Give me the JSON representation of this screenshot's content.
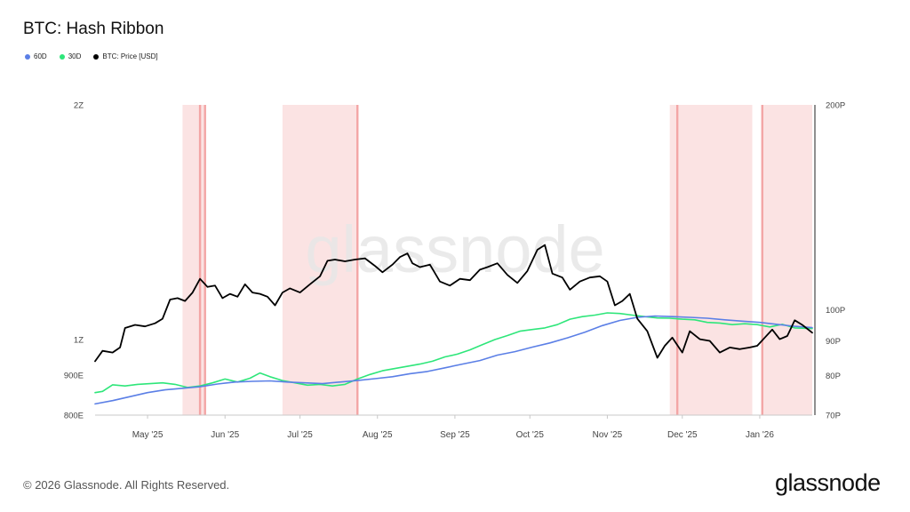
{
  "title": "BTC: Hash Ribbon",
  "footer": "© 2026 Glassnode. All Rights Reserved.",
  "brand": "glassnode",
  "watermark": "glassnode",
  "colors": {
    "60d": "#5b7fe6",
    "30d": "#2ee67a",
    "price": "#000000",
    "band": "#fbe3e3",
    "bandLine": "#f3a5a5"
  },
  "chart_data": {
    "type": "line",
    "title": "BTC: Hash Ribbon",
    "legend": [
      {
        "name": "60D",
        "color": "#5b7fe6"
      },
      {
        "name": "30D",
        "color": "#2ee67a"
      },
      {
        "name": "BTC: Price [USD]",
        "color": "#000000"
      }
    ],
    "legend_position": "top-left",
    "x_range": [
      "2025-04-10",
      "2026-01-22"
    ],
    "x_ticks": [
      {
        "label": "May '25",
        "date": "2025-05-01"
      },
      {
        "label": "Jun '25",
        "date": "2025-06-01"
      },
      {
        "label": "Jul '25",
        "date": "2025-07-01"
      },
      {
        "label": "Aug '25",
        "date": "2025-08-01"
      },
      {
        "label": "Sep '25",
        "date": "2025-09-01"
      },
      {
        "label": "Oct '25",
        "date": "2025-10-01"
      },
      {
        "label": "Nov '25",
        "date": "2025-11-01"
      },
      {
        "label": "Dec '25",
        "date": "2025-12-01"
      },
      {
        "label": "Jan '26",
        "date": "2026-01-01"
      }
    ],
    "y_left": {
      "scale": "log",
      "ticks": [
        {
          "label": "2Z",
          "value": 2000
        },
        {
          "label": "1Z",
          "value": 1000
        },
        {
          "label": "900E",
          "value": 900
        },
        {
          "label": "800E",
          "value": 800
        }
      ],
      "range": [
        800,
        2000
      ]
    },
    "y_right": {
      "scale": "log",
      "ticks": [
        {
          "label": "200P",
          "value": 200
        },
        {
          "label": "100P",
          "value": 100
        },
        {
          "label": "90P",
          "value": 90
        },
        {
          "label": "80P",
          "value": 80
        },
        {
          "label": "70P",
          "value": 70
        }
      ],
      "range": [
        70,
        200
      ]
    },
    "grid": false,
    "bands": [
      {
        "start": "2025-05-15",
        "end": "2025-05-24",
        "lines": [
          "2025-05-22",
          "2025-05-24"
        ]
      },
      {
        "start": "2025-06-24",
        "end": "2025-07-24",
        "lines": [
          "2025-07-24"
        ]
      },
      {
        "start": "2025-11-26",
        "end": "2025-12-29",
        "lines": [
          "2025-11-29"
        ]
      },
      {
        "start": "2026-01-02",
        "end": "2026-01-22",
        "lines": [
          "2026-01-02"
        ]
      }
    ],
    "series": [
      {
        "name": "BTC: Price [USD]",
        "axis": "right",
        "points": [
          [
            "2025-04-10",
            84000
          ],
          [
            "2025-04-13",
            87000
          ],
          [
            "2025-04-17",
            86500
          ],
          [
            "2025-04-20",
            88000
          ],
          [
            "2025-04-22",
            94000
          ],
          [
            "2025-04-26",
            95000
          ],
          [
            "2025-04-30",
            94500
          ],
          [
            "2025-05-04",
            95500
          ],
          [
            "2025-05-07",
            97000
          ],
          [
            "2025-05-10",
            103500
          ],
          [
            "2025-05-13",
            104000
          ],
          [
            "2025-05-16",
            103000
          ],
          [
            "2025-05-19",
            106000
          ],
          [
            "2025-05-22",
            111000
          ],
          [
            "2025-05-25",
            108000
          ],
          [
            "2025-05-28",
            108500
          ],
          [
            "2025-05-31",
            104000
          ],
          [
            "2025-06-03",
            105500
          ],
          [
            "2025-06-06",
            104500
          ],
          [
            "2025-06-09",
            109000
          ],
          [
            "2025-06-12",
            106000
          ],
          [
            "2025-06-15",
            105500
          ],
          [
            "2025-06-18",
            104500
          ],
          [
            "2025-06-21",
            101500
          ],
          [
            "2025-06-24",
            106000
          ],
          [
            "2025-06-27",
            107500
          ],
          [
            "2025-07-01",
            106000
          ],
          [
            "2025-07-05",
            109000
          ],
          [
            "2025-07-09",
            112000
          ],
          [
            "2025-07-12",
            118000
          ],
          [
            "2025-07-15",
            118500
          ],
          [
            "2025-07-19",
            117800
          ],
          [
            "2025-07-23",
            118500
          ],
          [
            "2025-07-27",
            119000
          ],
          [
            "2025-07-31",
            116000
          ],
          [
            "2025-08-03",
            113500
          ],
          [
            "2025-08-07",
            116500
          ],
          [
            "2025-08-10",
            119500
          ],
          [
            "2025-08-13",
            121000
          ],
          [
            "2025-08-15",
            117000
          ],
          [
            "2025-08-18",
            115500
          ],
          [
            "2025-08-22",
            116500
          ],
          [
            "2025-08-26",
            110000
          ],
          [
            "2025-08-30",
            108500
          ],
          [
            "2025-09-03",
            111000
          ],
          [
            "2025-09-07",
            110500
          ],
          [
            "2025-09-11",
            114500
          ],
          [
            "2025-09-14",
            115500
          ],
          [
            "2025-09-18",
            117000
          ],
          [
            "2025-09-22",
            112500
          ],
          [
            "2025-09-26",
            109500
          ],
          [
            "2025-09-30",
            114000
          ],
          [
            "2025-10-04",
            122500
          ],
          [
            "2025-10-07",
            124500
          ],
          [
            "2025-10-10",
            113000
          ],
          [
            "2025-10-14",
            111500
          ],
          [
            "2025-10-17",
            107000
          ],
          [
            "2025-10-21",
            110000
          ],
          [
            "2025-10-25",
            111500
          ],
          [
            "2025-10-29",
            112000
          ],
          [
            "2025-11-01",
            110000
          ],
          [
            "2025-11-04",
            101500
          ],
          [
            "2025-11-07",
            103000
          ],
          [
            "2025-11-10",
            105500
          ],
          [
            "2025-11-13",
            97000
          ],
          [
            "2025-11-17",
            93000
          ],
          [
            "2025-11-21",
            85000
          ],
          [
            "2025-11-24",
            88500
          ],
          [
            "2025-11-27",
            91000
          ],
          [
            "2025-12-01",
            86500
          ],
          [
            "2025-12-04",
            93000
          ],
          [
            "2025-12-08",
            90500
          ],
          [
            "2025-12-12",
            90000
          ],
          [
            "2025-12-16",
            86500
          ],
          [
            "2025-12-20",
            88000
          ],
          [
            "2025-12-24",
            87500
          ],
          [
            "2025-12-28",
            88000
          ],
          [
            "2025-12-31",
            88500
          ],
          [
            "2026-01-03",
            91000
          ],
          [
            "2026-01-06",
            93500
          ],
          [
            "2026-01-09",
            90500
          ],
          [
            "2026-01-12",
            91500
          ],
          [
            "2026-01-15",
            96500
          ],
          [
            "2026-01-18",
            95000
          ],
          [
            "2026-01-22",
            92500
          ]
        ]
      },
      {
        "name": "30D",
        "axis": "left",
        "points": [
          [
            "2025-04-10",
            855
          ],
          [
            "2025-04-13",
            858
          ],
          [
            "2025-04-17",
            875
          ],
          [
            "2025-04-22",
            872
          ],
          [
            "2025-04-27",
            876
          ],
          [
            "2025-05-02",
            878
          ],
          [
            "2025-05-07",
            880
          ],
          [
            "2025-05-12",
            876
          ],
          [
            "2025-05-17",
            868
          ],
          [
            "2025-05-22",
            872
          ],
          [
            "2025-05-27",
            880
          ],
          [
            "2025-06-01",
            890
          ],
          [
            "2025-06-06",
            882
          ],
          [
            "2025-06-11",
            892
          ],
          [
            "2025-06-15",
            906
          ],
          [
            "2025-06-19",
            896
          ],
          [
            "2025-06-24",
            886
          ],
          [
            "2025-06-29",
            880
          ],
          [
            "2025-07-04",
            874
          ],
          [
            "2025-07-09",
            876
          ],
          [
            "2025-07-14",
            872
          ],
          [
            "2025-07-19",
            876
          ],
          [
            "2025-07-24",
            890
          ],
          [
            "2025-07-29",
            902
          ],
          [
            "2025-08-03",
            912
          ],
          [
            "2025-08-08",
            918
          ],
          [
            "2025-08-13",
            924
          ],
          [
            "2025-08-18",
            930
          ],
          [
            "2025-08-23",
            938
          ],
          [
            "2025-08-28",
            950
          ],
          [
            "2025-09-02",
            958
          ],
          [
            "2025-09-07",
            970
          ],
          [
            "2025-09-12",
            985
          ],
          [
            "2025-09-17",
            1000
          ],
          [
            "2025-09-22",
            1012
          ],
          [
            "2025-09-27",
            1025
          ],
          [
            "2025-10-02",
            1030
          ],
          [
            "2025-10-07",
            1035
          ],
          [
            "2025-10-12",
            1045
          ],
          [
            "2025-10-17",
            1062
          ],
          [
            "2025-10-22",
            1070
          ],
          [
            "2025-10-27",
            1075
          ],
          [
            "2025-11-01",
            1082
          ],
          [
            "2025-11-06",
            1080
          ],
          [
            "2025-11-11",
            1075
          ],
          [
            "2025-11-16",
            1070
          ],
          [
            "2025-11-21",
            1066
          ],
          [
            "2025-11-26",
            1065
          ],
          [
            "2025-12-01",
            1062
          ],
          [
            "2025-12-06",
            1060
          ],
          [
            "2025-12-11",
            1052
          ],
          [
            "2025-12-16",
            1050
          ],
          [
            "2025-12-21",
            1045
          ],
          [
            "2025-12-26",
            1048
          ],
          [
            "2025-12-31",
            1045
          ],
          [
            "2026-01-05",
            1038
          ],
          [
            "2026-01-10",
            1046
          ],
          [
            "2026-01-15",
            1035
          ],
          [
            "2026-01-22",
            1033
          ]
        ]
      },
      {
        "name": "60D",
        "axis": "left",
        "points": [
          [
            "2025-04-10",
            827
          ],
          [
            "2025-04-17",
            835
          ],
          [
            "2025-04-24",
            845
          ],
          [
            "2025-05-01",
            855
          ],
          [
            "2025-05-08",
            862
          ],
          [
            "2025-05-15",
            866
          ],
          [
            "2025-05-22",
            870
          ],
          [
            "2025-05-29",
            877
          ],
          [
            "2025-06-05",
            882
          ],
          [
            "2025-06-12",
            884
          ],
          [
            "2025-06-19",
            885
          ],
          [
            "2025-06-26",
            882
          ],
          [
            "2025-07-03",
            880
          ],
          [
            "2025-07-10",
            878
          ],
          [
            "2025-07-17",
            882
          ],
          [
            "2025-07-24",
            886
          ],
          [
            "2025-07-31",
            891
          ],
          [
            "2025-08-07",
            896
          ],
          [
            "2025-08-14",
            904
          ],
          [
            "2025-08-21",
            910
          ],
          [
            "2025-08-28",
            920
          ],
          [
            "2025-09-04",
            930
          ],
          [
            "2025-09-11",
            940
          ],
          [
            "2025-09-18",
            955
          ],
          [
            "2025-09-25",
            965
          ],
          [
            "2025-10-02",
            978
          ],
          [
            "2025-10-09",
            990
          ],
          [
            "2025-10-16",
            1005
          ],
          [
            "2025-10-23",
            1022
          ],
          [
            "2025-10-30",
            1042
          ],
          [
            "2025-11-06",
            1058
          ],
          [
            "2025-11-13",
            1068
          ],
          [
            "2025-11-20",
            1072
          ],
          [
            "2025-11-27",
            1070
          ],
          [
            "2025-12-04",
            1068
          ],
          [
            "2025-12-11",
            1065
          ],
          [
            "2025-12-18",
            1060
          ],
          [
            "2025-12-25",
            1056
          ],
          [
            "2026-01-01",
            1052
          ],
          [
            "2026-01-08",
            1046
          ],
          [
            "2026-01-15",
            1040
          ],
          [
            "2026-01-22",
            1036
          ]
        ]
      }
    ]
  }
}
